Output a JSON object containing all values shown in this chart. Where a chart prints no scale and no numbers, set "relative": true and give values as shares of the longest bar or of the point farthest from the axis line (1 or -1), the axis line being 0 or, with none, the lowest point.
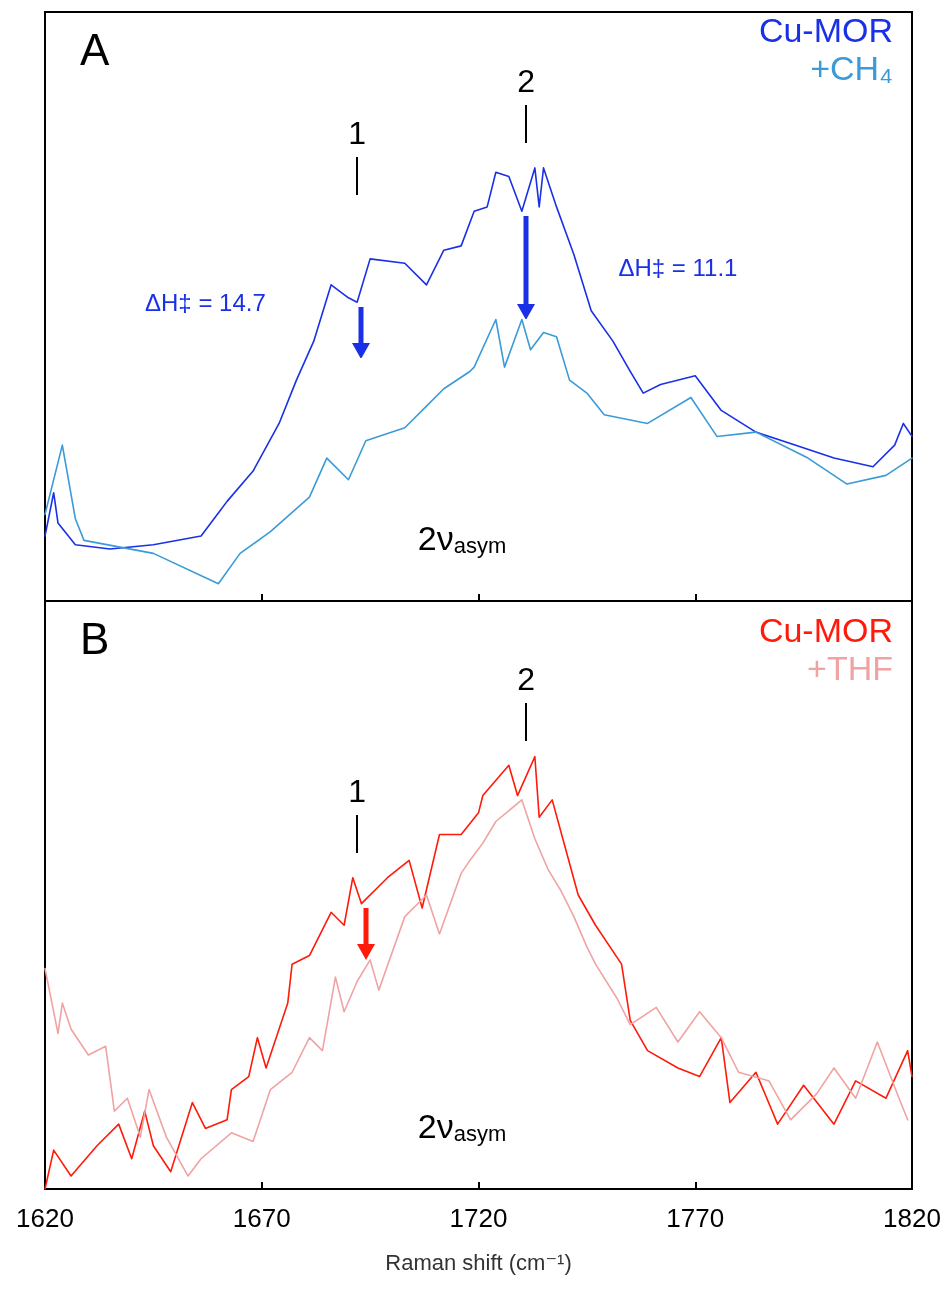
{
  "chart_data": [
    {
      "type": "line",
      "title": "A",
      "relative": true,
      "xlim": [
        1620,
        1820
      ],
      "xticks": [
        1620,
        1670,
        1720,
        1770,
        1820
      ],
      "tick_labels": false,
      "legend": "top right",
      "grid": false,
      "marker": "none",
      "line_style": "solid",
      "annotations": [
        "1",
        "2",
        "ΔH‡ = 14.7",
        "ΔH‡ = 11.1",
        "2ν$_{asym}$"
      ],
      "series": [
        {
          "name": "Cu-MOR",
          "color": "#1a30e6",
          "x": [
            1620,
            1622,
            1623,
            1627,
            1635,
            1645,
            1656,
            1662,
            1668,
            1674,
            1678,
            1682,
            1686,
            1690,
            1692,
            1695,
            1703,
            1708,
            1712,
            1716,
            1719,
            1722,
            1724,
            1727,
            1730,
            1733,
            1734,
            1735,
            1738,
            1742,
            1746,
            1751,
            1755,
            1758,
            1762,
            1770,
            1776,
            1784,
            1793,
            1802,
            1811,
            1816,
            1818,
            1820
          ],
          "values": [
            0.15,
            0.25,
            0.18,
            0.13,
            0.12,
            0.13,
            0.15,
            0.23,
            0.3,
            0.41,
            0.51,
            0.6,
            0.73,
            0.7,
            0.69,
            0.79,
            0.78,
            0.73,
            0.81,
            0.82,
            0.9,
            0.91,
            0.99,
            0.98,
            0.9,
            1.0,
            0.91,
            1.0,
            0.91,
            0.8,
            0.67,
            0.6,
            0.53,
            0.48,
            0.5,
            0.52,
            0.44,
            0.39,
            0.36,
            0.33,
            0.31,
            0.36,
            0.41,
            0.38
          ]
        },
        {
          "name": "+CH₄",
          "color": "#3a9bd8",
          "x": [
            1620,
            1624,
            1627,
            1629,
            1645,
            1660,
            1665,
            1672,
            1681,
            1685,
            1690,
            1694,
            1703,
            1708,
            1712,
            1718,
            1719,
            1724,
            1726,
            1730,
            1732,
            1735,
            1738,
            1741,
            1745,
            1749,
            1759,
            1769,
            1775,
            1784,
            1796,
            1805,
            1814,
            1820
          ],
          "values": [
            0.2,
            0.36,
            0.19,
            0.14,
            0.11,
            0.04,
            0.11,
            0.16,
            0.24,
            0.33,
            0.28,
            0.37,
            0.4,
            0.45,
            0.49,
            0.53,
            0.54,
            0.65,
            0.54,
            0.65,
            0.58,
            0.62,
            0.61,
            0.51,
            0.48,
            0.43,
            0.41,
            0.47,
            0.38,
            0.39,
            0.33,
            0.27,
            0.29,
            0.33
          ]
        }
      ]
    },
    {
      "type": "line",
      "title": "B",
      "relative": true,
      "xlim": [
        1620,
        1820
      ],
      "xticks": [
        1620,
        1670,
        1720,
        1770,
        1820
      ],
      "tick_labels": "x",
      "xlabel": "Raman shift (cm⁻¹)",
      "legend": "top right",
      "grid": false,
      "marker": "none",
      "line_style": "solid",
      "annotations": [
        "1",
        "2",
        "2ν$_{asym}$"
      ],
      "series": [
        {
          "name": "Cu-MOR",
          "color": "#ff1a0a",
          "x": [
            1620,
            1622,
            1626,
            1632,
            1637,
            1640,
            1643,
            1645,
            1649,
            1654,
            1657,
            1662,
            1663,
            1667,
            1669,
            1671,
            1676,
            1677,
            1681,
            1686,
            1689,
            1691,
            1693,
            1699,
            1704,
            1707,
            1711,
            1716,
            1720,
            1721,
            1727,
            1729,
            1733,
            1734,
            1737,
            1740,
            1743,
            1747,
            1753,
            1755,
            1759,
            1766,
            1771,
            1776,
            1778,
            1784,
            1789,
            1795,
            1802,
            1807,
            1814,
            1819,
            1820
          ],
          "values": [
            0,
            0.09,
            0.03,
            0.1,
            0.15,
            0.07,
            0.18,
            0.1,
            0.04,
            0.2,
            0.14,
            0.16,
            0.23,
            0.26,
            0.35,
            0.28,
            0.43,
            0.52,
            0.54,
            0.64,
            0.61,
            0.72,
            0.66,
            0.72,
            0.76,
            0.65,
            0.82,
            0.82,
            0.87,
            0.91,
            0.98,
            0.91,
            1.0,
            0.86,
            0.9,
            0.79,
            0.68,
            0.61,
            0.52,
            0.39,
            0.32,
            0.28,
            0.26,
            0.35,
            0.2,
            0.27,
            0.15,
            0.24,
            0.15,
            0.25,
            0.21,
            0.32,
            0.26
          ]
        },
        {
          "name": "+THF",
          "color": "#f0a3a3",
          "x": [
            1620,
            1623,
            1624,
            1626,
            1630,
            1634,
            1636,
            1639,
            1642,
            1644,
            1648,
            1653,
            1656,
            1663,
            1668,
            1672,
            1677,
            1681,
            1684,
            1687,
            1689,
            1692,
            1695,
            1697,
            1703,
            1708,
            1711,
            1716,
            1718,
            1721,
            1724,
            1730,
            1733,
            1736,
            1739,
            1742,
            1745,
            1747,
            1752,
            1755,
            1761,
            1766,
            1771,
            1776,
            1780,
            1787,
            1792,
            1798,
            1802,
            1807,
            1812,
            1817,
            1819
          ],
          "values": [
            0.51,
            0.36,
            0.43,
            0.37,
            0.31,
            0.33,
            0.18,
            0.21,
            0.12,
            0.23,
            0.12,
            0.03,
            0.07,
            0.13,
            0.11,
            0.23,
            0.27,
            0.35,
            0.32,
            0.49,
            0.41,
            0.48,
            0.53,
            0.46,
            0.63,
            0.68,
            0.59,
            0.73,
            0.76,
            0.8,
            0.85,
            0.9,
            0.81,
            0.74,
            0.69,
            0.63,
            0.56,
            0.52,
            0.44,
            0.38,
            0.42,
            0.34,
            0.41,
            0.35,
            0.27,
            0.25,
            0.16,
            0.22,
            0.28,
            0.21,
            0.34,
            0.21,
            0.16
          ]
        }
      ]
    }
  ]
}
